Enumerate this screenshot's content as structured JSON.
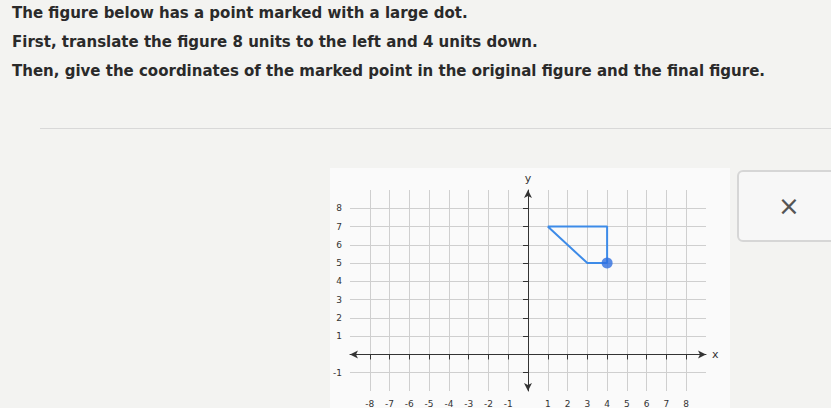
{
  "instructions": [
    "The figure below has a point marked with a large dot.",
    "First, translate the figure 8 units to the left and 4 units down.",
    "Then, give the coordinates of the marked point in the original figure and the final figure."
  ],
  "close_button": "×",
  "chart_data": {
    "type": "line",
    "x_label": "x",
    "y_label": "y",
    "grid": true,
    "xlim": [
      -9,
      9
    ],
    "xticks": [
      -8,
      -7,
      -6,
      -5,
      -4,
      -3,
      -2,
      -1,
      1,
      2,
      3,
      4,
      5,
      6,
      7,
      8
    ],
    "ylim": [
      -2,
      9
    ],
    "yticks": [
      -1,
      1,
      2,
      3,
      4,
      5,
      6,
      7,
      8
    ],
    "series": [
      {
        "type": "line",
        "color": "#3d8be8",
        "x": [
          1,
          4,
          4,
          3,
          1
        ],
        "values": [
          7,
          7,
          5,
          5,
          7
        ]
      },
      {
        "type": "scatter",
        "color": "#2f6fe0",
        "marker": "circle",
        "x": [
          4
        ],
        "values": [
          5
        ]
      }
    ]
  }
}
